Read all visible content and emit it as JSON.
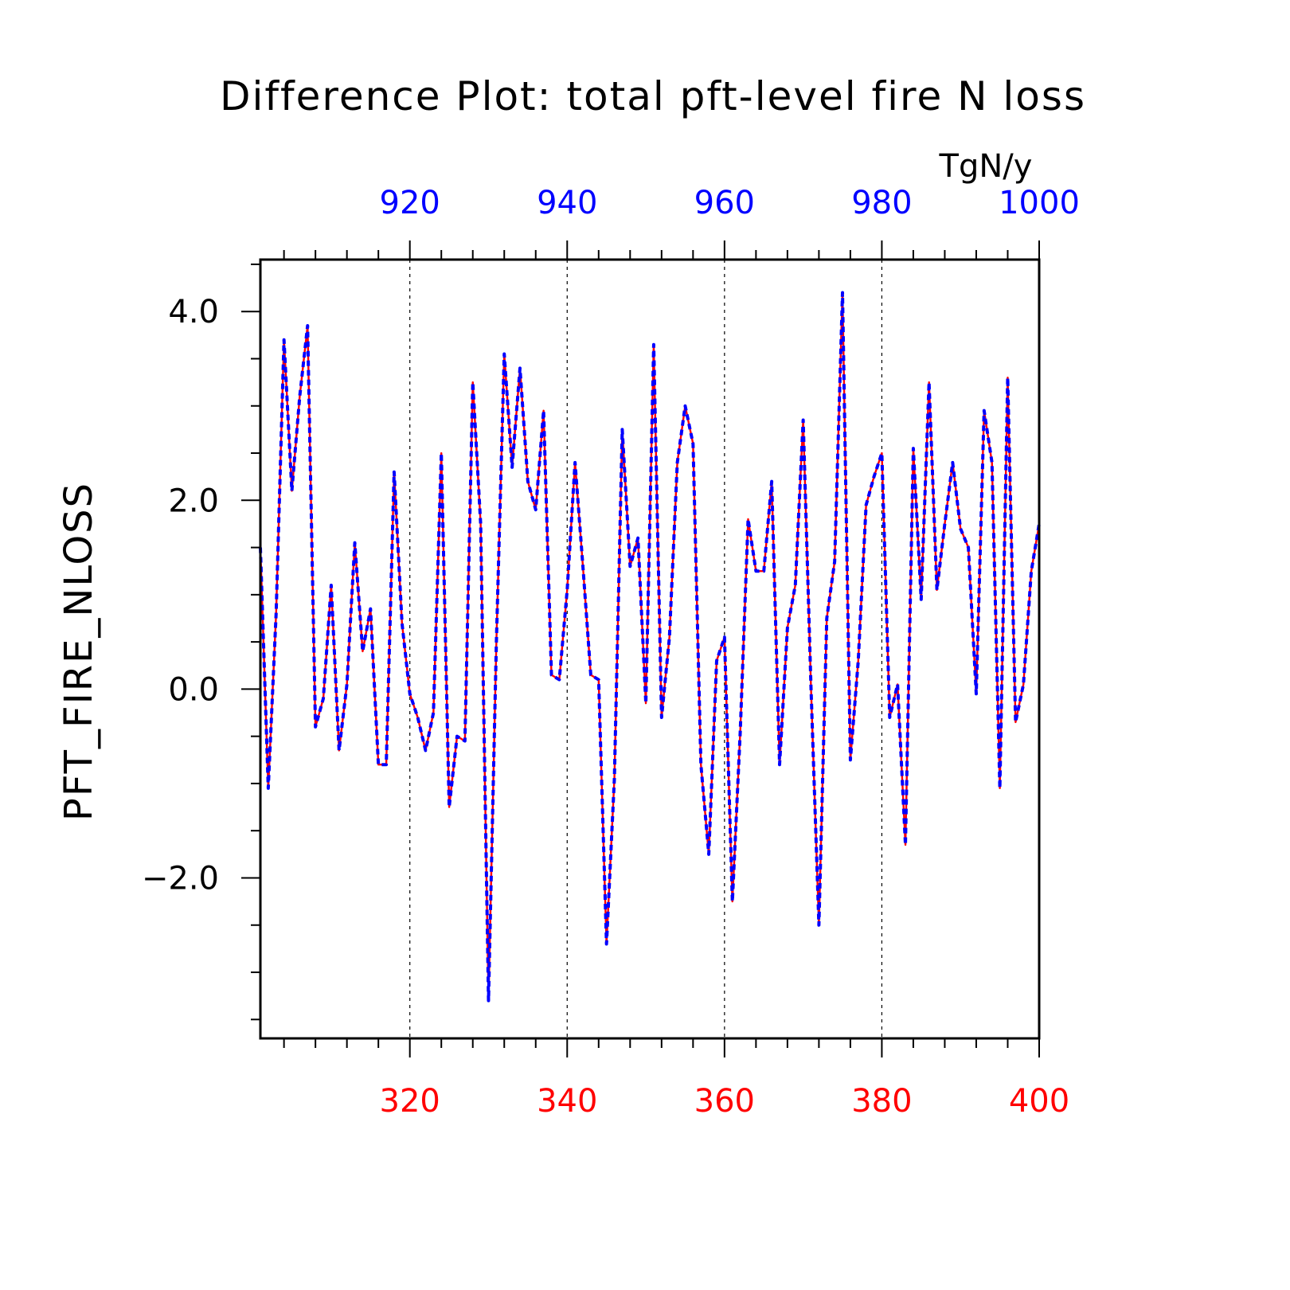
{
  "chart_data": {
    "type": "line",
    "title": "Difference Plot: total pft-level fire N loss",
    "units": "TgN/y",
    "ylabel": "PFT_FIRE_NLOSS",
    "xlabel": "",
    "x_bottom": {
      "lim": [
        301,
        400
      ],
      "ticks": [
        320,
        340,
        360,
        380,
        400
      ],
      "color": "#ff0000"
    },
    "x_top": {
      "lim": [
        901,
        1000
      ],
      "ticks": [
        920,
        940,
        960,
        980,
        1000
      ],
      "color": "#0000ff"
    },
    "ylim": [
      -3.7,
      4.55
    ],
    "yticks": [
      -2.0,
      0.0,
      2.0,
      4.0
    ],
    "ytick_labels": [
      "−2.0",
      "0.0",
      "2.0",
      "4.0"
    ],
    "grid": "vertical dotted at major top ticks",
    "series": [
      {
        "color": "#ff0000",
        "style": "solid",
        "axis": "bottom",
        "x_start": 301,
        "values": [
          1.5,
          -1.05,
          0.8,
          3.7,
          2.1,
          3.1,
          3.85,
          -0.4,
          -0.1,
          1.1,
          -0.65,
          0.05,
          1.55,
          0.4,
          0.85,
          -0.8,
          -0.8,
          2.3,
          0.7,
          -0.05,
          -0.3,
          -0.65,
          -0.25,
          2.5,
          -1.25,
          -0.5,
          -0.55,
          3.25,
          1.75,
          -3.3,
          0.5,
          3.55,
          2.35,
          3.4,
          2.2,
          1.9,
          2.95,
          0.15,
          0.1,
          1.05,
          2.4,
          1.3,
          0.15,
          0.1,
          -2.7,
          -0.95,
          2.75,
          1.3,
          1.6,
          -0.15,
          3.65,
          -0.3,
          0.55,
          2.4,
          3.0,
          2.6,
          -0.8,
          -1.75,
          0.3,
          0.55,
          -2.25,
          -0.45,
          1.8,
          1.25,
          1.25,
          2.2,
          -0.8,
          0.65,
          1.1,
          2.85,
          0.0,
          -2.5,
          0.75,
          1.35,
          4.2,
          -0.75,
          0.3,
          1.95,
          2.25,
          2.5,
          -0.3,
          0.05,
          -1.65,
          2.55,
          0.95,
          3.25,
          1.05,
          1.75,
          2.4,
          1.7,
          1.5,
          -0.05,
          2.95,
          2.4,
          -1.05,
          3.3,
          -0.35,
          0.05,
          1.25,
          1.75
        ]
      },
      {
        "color": "#0000ff",
        "style": "dashed",
        "axis": "top",
        "x_start": 901,
        "values": [
          1.5,
          -1.05,
          0.8,
          3.7,
          2.1,
          3.1,
          3.85,
          -0.4,
          -0.1,
          1.1,
          -0.65,
          0.05,
          1.55,
          0.4,
          0.85,
          -0.8,
          -0.8,
          2.3,
          0.7,
          -0.05,
          -0.3,
          -0.65,
          -0.25,
          2.5,
          -1.25,
          -0.5,
          -0.55,
          3.25,
          1.75,
          -3.3,
          0.5,
          3.55,
          2.35,
          3.4,
          2.2,
          1.9,
          2.95,
          0.15,
          0.1,
          1.05,
          2.4,
          1.3,
          0.15,
          0.1,
          -2.7,
          -0.95,
          2.75,
          1.3,
          1.6,
          -0.15,
          3.65,
          -0.3,
          0.55,
          2.4,
          3.0,
          2.6,
          -0.8,
          -1.75,
          0.3,
          0.55,
          -2.25,
          -0.45,
          1.8,
          1.25,
          1.25,
          2.2,
          -0.8,
          0.65,
          1.1,
          2.85,
          0.0,
          -2.5,
          0.75,
          1.35,
          4.2,
          -0.75,
          0.3,
          1.95,
          2.25,
          2.5,
          -0.3,
          0.05,
          -1.65,
          2.55,
          0.95,
          3.25,
          1.05,
          1.75,
          2.4,
          1.7,
          1.5,
          -0.05,
          2.95,
          2.4,
          -1.05,
          3.3,
          -0.35,
          0.05,
          1.25,
          1.75
        ]
      }
    ]
  }
}
